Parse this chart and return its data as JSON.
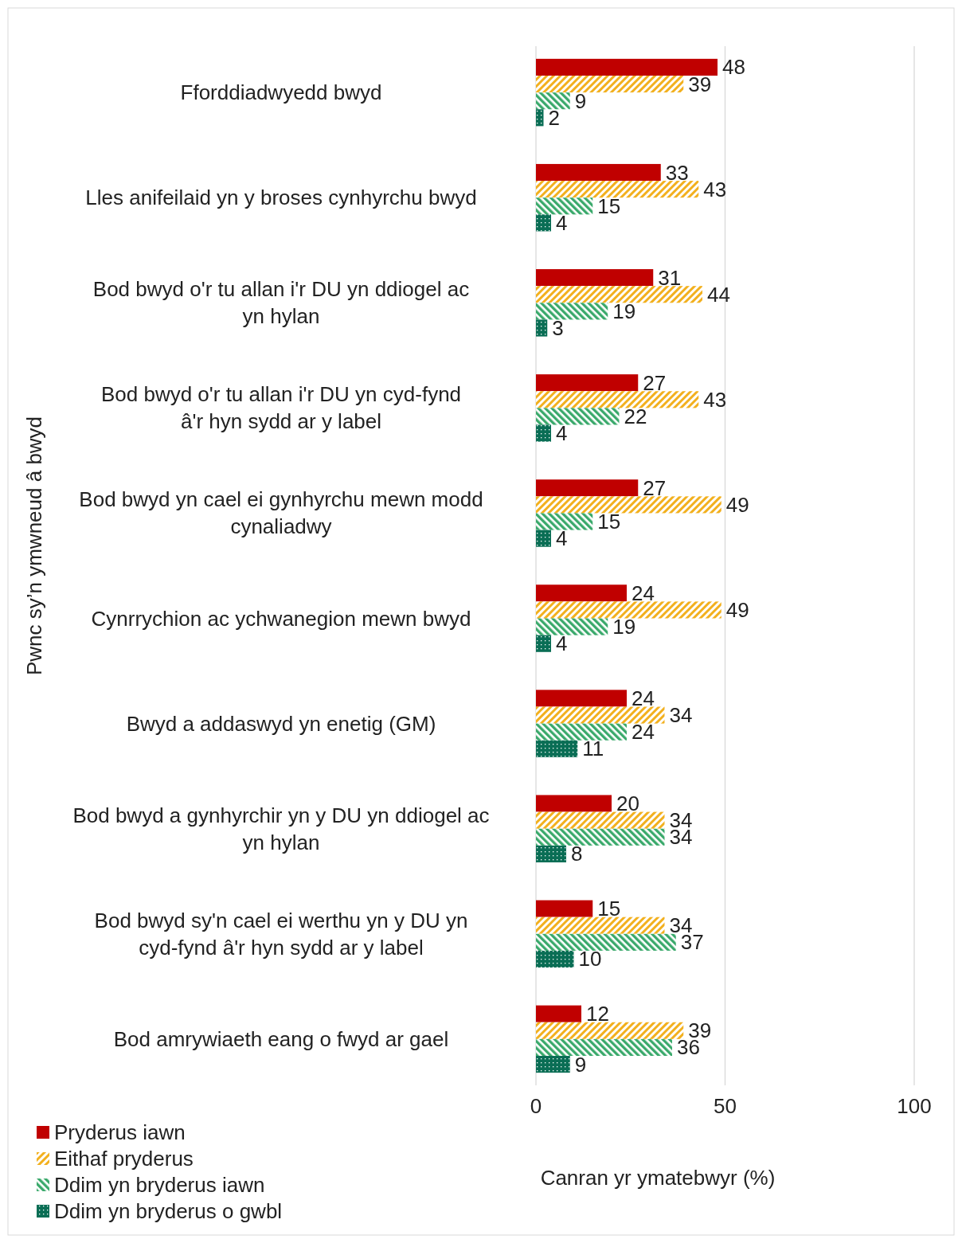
{
  "chart_data": {
    "type": "bar",
    "orientation": "horizontal",
    "xlabel": "Canran yr ymatebwyr (%)",
    "ylabel": "Pwnc sy’n ymwneud â bwyd",
    "categories": [
      "Fforddiadwyedd bwyd",
      "Lles anifeilaid yn y broses cynhyrchu bwyd",
      "Bod bwyd o'r tu allan i'r DU yn ddiogel ac yn hylan",
      "Bod bwyd o'r tu allan i'r DU yn cyd-fynd â'r hyn sydd ar y label",
      "Bod bwyd yn cael ei gynhyrchu mewn modd cynaliadwy",
      "Cynrrychion ac ychwanegion mewn bwyd",
      "Bwyd a addaswyd yn enetig (GM)",
      "Bod bwyd a gynhyrchir yn y DU yn ddiogel ac yn hylan",
      "Bod bwyd sy'n cael ei werthu yn y DU yn cyd-fynd â'r hyn sydd ar y label",
      "Bod amrywiaeth eang o fwyd ar gael"
    ],
    "series": [
      {
        "name": "Pryderus iawn",
        "color": "#c00000",
        "values": [
          48,
          33,
          31,
          27,
          27,
          24,
          24,
          20,
          15,
          12
        ]
      },
      {
        "name": "Eithaf pryderus",
        "color": "#f2b01e",
        "values": [
          39,
          43,
          44,
          43,
          49,
          49,
          34,
          34,
          34,
          39
        ]
      },
      {
        "name": "Ddim yn bryderus iawn",
        "color": "#3aa96b",
        "values": [
          9,
          15,
          19,
          22,
          15,
          19,
          24,
          34,
          37,
          36
        ]
      },
      {
        "name": "Ddim yn bryderus o gwbl",
        "color": "#0a6e55",
        "values": [
          2,
          4,
          3,
          4,
          4,
          4,
          11,
          8,
          10,
          9
        ]
      }
    ],
    "xlim": [
      0,
      100
    ],
    "xticks": [
      0,
      50,
      100
    ],
    "grid": "x",
    "legend": "bottom left",
    "data_labels": true
  }
}
